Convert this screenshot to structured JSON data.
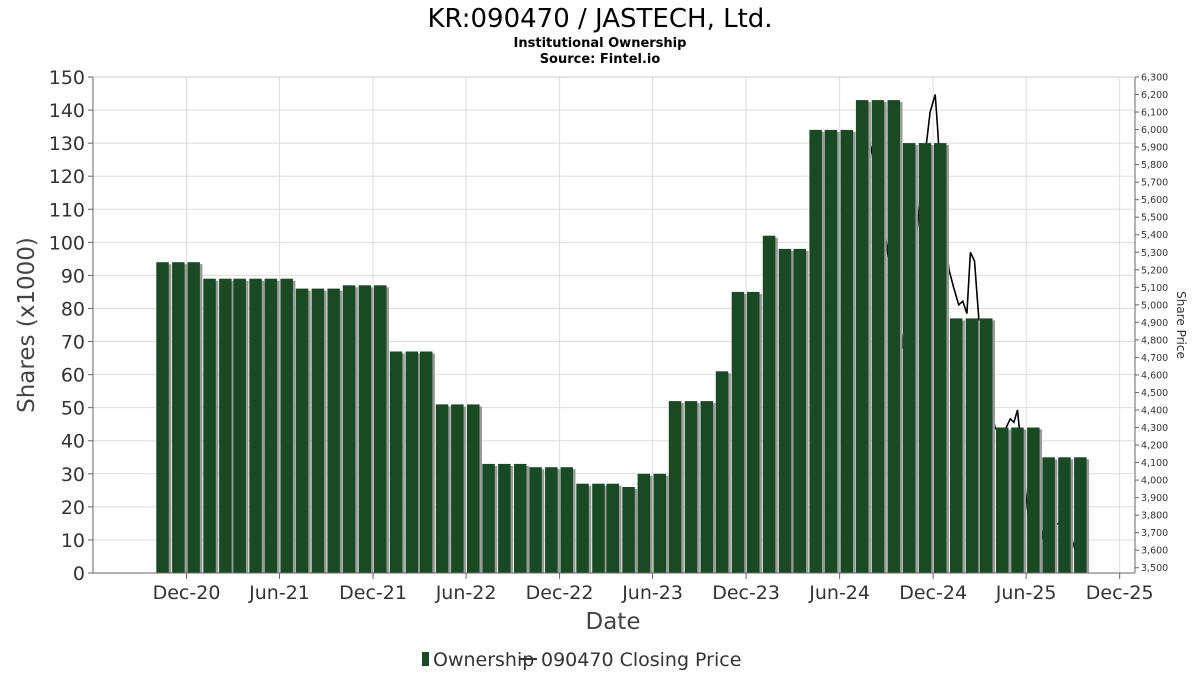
{
  "chart_data": {
    "type": "bar",
    "title": "KR:090470 / JASTECH, Ltd.",
    "subtitle": "Institutional Ownership",
    "source": "Source: Fintel.io",
    "xlabel": "Date",
    "ylabel": "Shares (x1000)",
    "y2label": "Share Price",
    "ylim": [
      0,
      150
    ],
    "y2lim": [
      3470,
      6300
    ],
    "grid": true,
    "x_start": "2020-06-01",
    "x_end": "2025-12-31",
    "x_ticks": [
      {
        "label": "Dec-20",
        "date": "2020-12-01"
      },
      {
        "label": "Jun-21",
        "date": "2021-06-01"
      },
      {
        "label": "Dec-21",
        "date": "2021-12-01"
      },
      {
        "label": "Jun-22",
        "date": "2022-06-01"
      },
      {
        "label": "Dec-22",
        "date": "2022-12-01"
      },
      {
        "label": "Jun-23",
        "date": "2023-06-01"
      },
      {
        "label": "Dec-23",
        "date": "2023-12-01"
      },
      {
        "label": "Jun-24",
        "date": "2024-06-01"
      },
      {
        "label": "Dec-24",
        "date": "2024-12-01"
      },
      {
        "label": "Jun-25",
        "date": "2025-06-01"
      },
      {
        "label": "Dec-25",
        "date": "2025-12-01"
      }
    ],
    "y_ticks": [
      0,
      10,
      20,
      30,
      40,
      50,
      60,
      70,
      80,
      90,
      100,
      110,
      120,
      130,
      140,
      150
    ],
    "y2_ticks": [
      "3,500",
      "3,600",
      "3,700",
      "3,800",
      "3,900",
      "4,000",
      "4,100",
      "4,200",
      "4,300",
      "4,400",
      "4,500",
      "4,600",
      "4,700",
      "4,800",
      "4,900",
      "5,000",
      "5,100",
      "5,200",
      "5,300",
      "5,400",
      "5,500",
      "5,600",
      "5,700",
      "5,800",
      "5,900",
      "6,000",
      "6,100",
      "6,200",
      "6,300"
    ],
    "y2_tick_values": [
      3500,
      3600,
      3700,
      3800,
      3900,
      4000,
      4100,
      4200,
      4300,
      4400,
      4500,
      4600,
      4700,
      4800,
      4900,
      5000,
      5100,
      5200,
      5300,
      5400,
      5500,
      5600,
      5700,
      5800,
      5900,
      6000,
      6100,
      6200,
      6300
    ],
    "series": [
      {
        "name": "Ownership",
        "color": "#1a4a24",
        "shadow_color": "#9a9a9a",
        "points": [
          {
            "x": "2020-10-15",
            "y": 94
          },
          {
            "x": "2020-11-15",
            "y": 94
          },
          {
            "x": "2020-12-15",
            "y": 94
          },
          {
            "x": "2021-01-15",
            "y": 89
          },
          {
            "x": "2021-02-15",
            "y": 89
          },
          {
            "x": "2021-03-15",
            "y": 89
          },
          {
            "x": "2021-04-15",
            "y": 89
          },
          {
            "x": "2021-05-15",
            "y": 89
          },
          {
            "x": "2021-06-15",
            "y": 89
          },
          {
            "x": "2021-07-15",
            "y": 86
          },
          {
            "x": "2021-08-15",
            "y": 86
          },
          {
            "x": "2021-09-15",
            "y": 86
          },
          {
            "x": "2021-10-15",
            "y": 87
          },
          {
            "x": "2021-11-15",
            "y": 87
          },
          {
            "x": "2021-12-15",
            "y": 87
          },
          {
            "x": "2022-01-15",
            "y": 67
          },
          {
            "x": "2022-02-15",
            "y": 67
          },
          {
            "x": "2022-03-15",
            "y": 67
          },
          {
            "x": "2022-04-15",
            "y": 51
          },
          {
            "x": "2022-05-15",
            "y": 51
          },
          {
            "x": "2022-06-15",
            "y": 51
          },
          {
            "x": "2022-07-15",
            "y": 33
          },
          {
            "x": "2022-08-15",
            "y": 33
          },
          {
            "x": "2022-09-15",
            "y": 33
          },
          {
            "x": "2022-10-15",
            "y": 32
          },
          {
            "x": "2022-11-15",
            "y": 32
          },
          {
            "x": "2022-12-15",
            "y": 32
          },
          {
            "x": "2023-01-15",
            "y": 27
          },
          {
            "x": "2023-02-15",
            "y": 27
          },
          {
            "x": "2023-03-15",
            "y": 27
          },
          {
            "x": "2023-04-15",
            "y": 26
          },
          {
            "x": "2023-05-15",
            "y": 30
          },
          {
            "x": "2023-06-15",
            "y": 30
          },
          {
            "x": "2023-07-15",
            "y": 52
          },
          {
            "x": "2023-08-15",
            "y": 52
          },
          {
            "x": "2023-09-15",
            "y": 52
          },
          {
            "x": "2023-10-15",
            "y": 61
          },
          {
            "x": "2023-11-15",
            "y": 85
          },
          {
            "x": "2023-12-15",
            "y": 85
          },
          {
            "x": "2024-01-15",
            "y": 102
          },
          {
            "x": "2024-02-15",
            "y": 98
          },
          {
            "x": "2024-03-15",
            "y": 98
          },
          {
            "x": "2024-04-15",
            "y": 134
          },
          {
            "x": "2024-05-15",
            "y": 134
          },
          {
            "x": "2024-06-15",
            "y": 134
          },
          {
            "x": "2024-07-15",
            "y": 143
          },
          {
            "x": "2024-08-15",
            "y": 143
          },
          {
            "x": "2024-09-15",
            "y": 143
          },
          {
            "x": "2024-10-15",
            "y": 130
          },
          {
            "x": "2024-11-15",
            "y": 130
          },
          {
            "x": "2024-12-15",
            "y": 130
          },
          {
            "x": "2025-01-15",
            "y": 77
          },
          {
            "x": "2025-02-15",
            "y": 77
          },
          {
            "x": "2025-03-15",
            "y": 77
          },
          {
            "x": "2025-04-15",
            "y": 44
          },
          {
            "x": "2025-05-15",
            "y": 44
          },
          {
            "x": "2025-06-15",
            "y": 44
          },
          {
            "x": "2025-07-15",
            "y": 35
          },
          {
            "x": "2025-08-15",
            "y": 35
          },
          {
            "x": "2025-09-15",
            "y": 35
          }
        ]
      },
      {
        "name": "090470 Closing Price",
        "color": "#000000",
        "axis": "right",
        "points": [
          {
            "x": "2024-07-20",
            "y": 6000
          },
          {
            "x": "2024-08-01",
            "y": 5900
          },
          {
            "x": "2024-08-20",
            "y": 5600
          },
          {
            "x": "2024-09-05",
            "y": 5250
          },
          {
            "x": "2024-09-20",
            "y": 4950
          },
          {
            "x": "2024-10-01",
            "y": 4750
          },
          {
            "x": "2024-10-15",
            "y": 5100
          },
          {
            "x": "2024-10-28",
            "y": 5350
          },
          {
            "x": "2024-11-05",
            "y": 5600
          },
          {
            "x": "2024-11-15",
            "y": 5850
          },
          {
            "x": "2024-11-25",
            "y": 6100
          },
          {
            "x": "2024-12-05",
            "y": 6200
          },
          {
            "x": "2024-12-10",
            "y": 6000
          },
          {
            "x": "2024-12-20",
            "y": 5500
          },
          {
            "x": "2025-01-01",
            "y": 5200
          },
          {
            "x": "2025-01-10",
            "y": 5100
          },
          {
            "x": "2025-01-20",
            "y": 5000
          },
          {
            "x": "2025-01-28",
            "y": 5020
          },
          {
            "x": "2025-02-05",
            "y": 4950
          },
          {
            "x": "2025-02-12",
            "y": 5300
          },
          {
            "x": "2025-02-20",
            "y": 5250
          },
          {
            "x": "2025-03-01",
            "y": 4900
          },
          {
            "x": "2025-03-15",
            "y": 4600
          },
          {
            "x": "2025-04-01",
            "y": 4300
          },
          {
            "x": "2025-04-15",
            "y": 4250
          },
          {
            "x": "2025-05-01",
            "y": 4350
          },
          {
            "x": "2025-05-08",
            "y": 4330
          },
          {
            "x": "2025-05-15",
            "y": 4400
          },
          {
            "x": "2025-05-25",
            "y": 4100
          },
          {
            "x": "2025-06-05",
            "y": 3800
          },
          {
            "x": "2025-06-15",
            "y": 3700
          },
          {
            "x": "2025-06-25",
            "y": 3800
          },
          {
            "x": "2025-07-05",
            "y": 3650
          },
          {
            "x": "2025-07-15",
            "y": 3800
          },
          {
            "x": "2025-08-01",
            "y": 3750
          },
          {
            "x": "2025-08-15",
            "y": 3760
          },
          {
            "x": "2025-08-28",
            "y": 3680
          },
          {
            "x": "2025-09-10",
            "y": 3550
          }
        ]
      }
    ],
    "legend": {
      "placement": "bottom"
    }
  },
  "legend": {
    "ownership_label": "Ownership",
    "price_label": "090470 Closing Price"
  }
}
